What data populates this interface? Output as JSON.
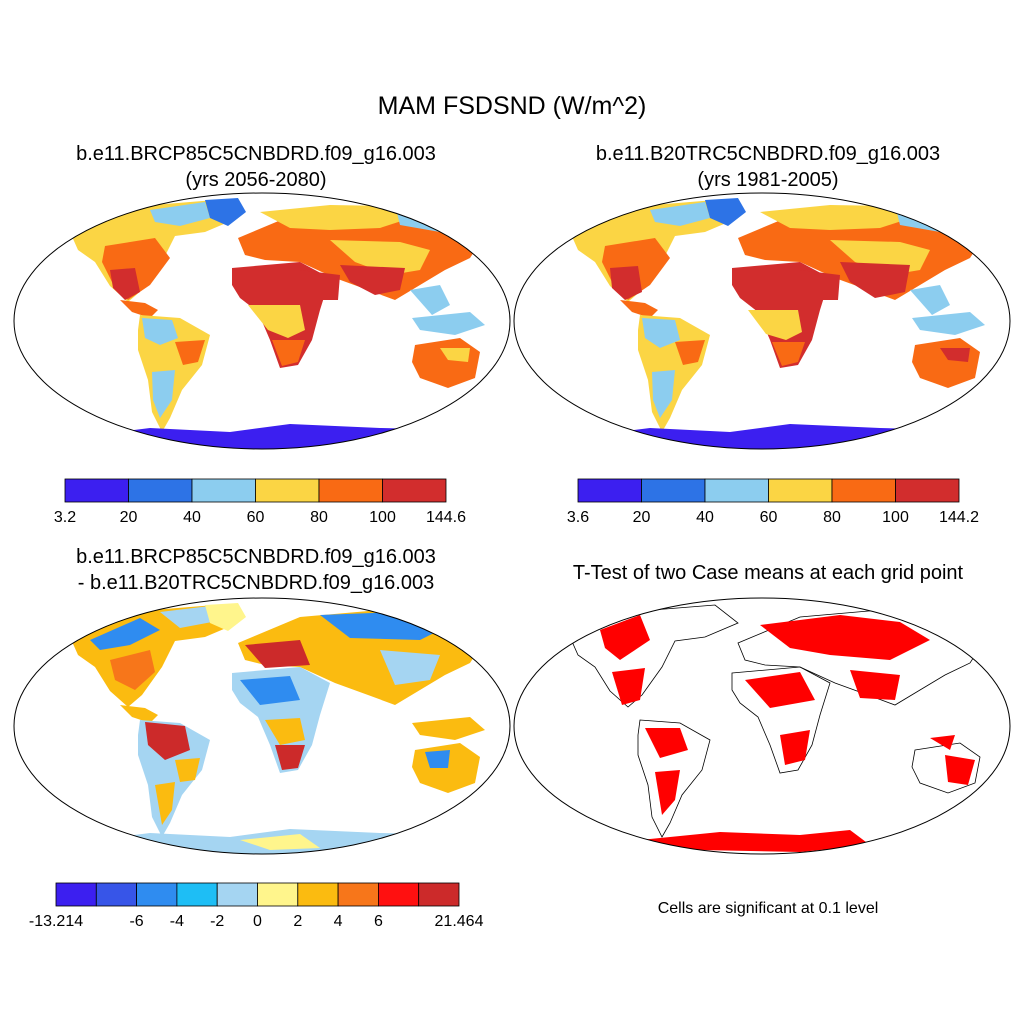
{
  "title": "MAM FSDSND (W/m^2)",
  "panels": [
    {
      "id": "p1",
      "title_line1": "b.e11.BRCP85C5CNBDRD.f09_g16.003",
      "title_line2": "(yrs 2056-2080)",
      "colorbar": {
        "colors": [
          "#3c1ff0",
          "#2d73e6",
          "#8ccdef",
          "#fbd544",
          "#f96a14",
          "#d22d2d"
        ],
        "labels": [
          "3.2",
          "20",
          "40",
          "60",
          "80",
          "100",
          "144.6"
        ]
      }
    },
    {
      "id": "p2",
      "title_line1": "b.e11.B20TRC5CNBDRD.f09_g16.003",
      "title_line2": "(yrs 1981-2005)",
      "colorbar": {
        "colors": [
          "#3c1ff0",
          "#2d73e6",
          "#8ccdef",
          "#fbd544",
          "#f96a14",
          "#d22d2d"
        ],
        "labels": [
          "3.6",
          "20",
          "40",
          "60",
          "80",
          "100",
          "144.2"
        ]
      }
    },
    {
      "id": "p3",
      "title_line1": "b.e11.BRCP85C5CNBDRD.f09_g16.003",
      "title_line2": "- b.e11.B20TRC5CNBDRD.f09_g16.003",
      "colorbar": {
        "colors": [
          "#3c1ff0",
          "#3755e8",
          "#2f8cf0",
          "#1ebef5",
          "#a5d5f2",
          "#fff58c",
          "#fbbb10",
          "#f7761a",
          "#ff1010",
          "#cc2a2a"
        ],
        "labels": [
          "-13.214",
          "",
          "-6",
          "-4",
          "-2",
          "0",
          "2",
          "4",
          "6",
          "",
          "21.464"
        ]
      }
    },
    {
      "id": "p4",
      "title_line1": "T-Test of two Case means at each grid point",
      "note": "Cells are significant at 0.1 level",
      "colors": {
        "significant": "#ff0000"
      }
    }
  ]
}
